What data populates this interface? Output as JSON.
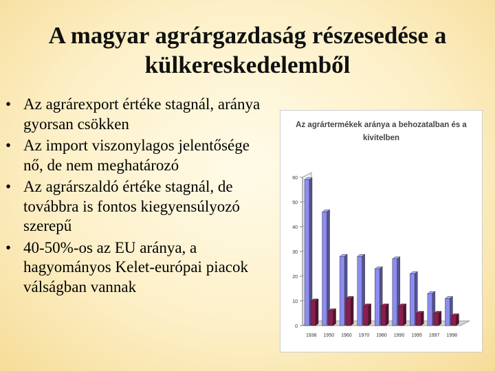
{
  "slide": {
    "title": "A magyar agrárgazdaság részesedése a külkereskedelemből",
    "bullets": [
      "Az agrárexport értéke stagnál, aránya gyorsan csökken",
      "Az import viszonylagos jelentősége nő, de nem meghatározó",
      "Az agrárszaldó értéke stagnál, de továbbra is fontos kiegyensúlyozó szerepű",
      "40-50%-os az EU aránya, a hagyományos Kelet-európai piacok válságban vannak"
    ],
    "bullet_symbol": "•"
  },
  "chart_data": {
    "type": "bar",
    "title": "Az agrártermékek aránya a behozatalban és a kivitelben",
    "categories": [
      "1938",
      "1950",
      "1960",
      "1970",
      "1980",
      "1990",
      "1995",
      "1997",
      "1998"
    ],
    "series": [
      {
        "values": [
          59,
          46,
          28,
          28,
          23,
          27,
          21,
          13,
          11
        ],
        "color": "#8c8cf0"
      },
      {
        "values": [
          10,
          6,
          11,
          8,
          8,
          8,
          5,
          5,
          4
        ],
        "color": "#8a1e4e"
      }
    ],
    "ylim": [
      0,
      60
    ],
    "yticks": [
      0,
      10,
      20,
      30,
      40,
      50,
      60
    ],
    "grid": false,
    "legend": "none",
    "style": "3d"
  }
}
